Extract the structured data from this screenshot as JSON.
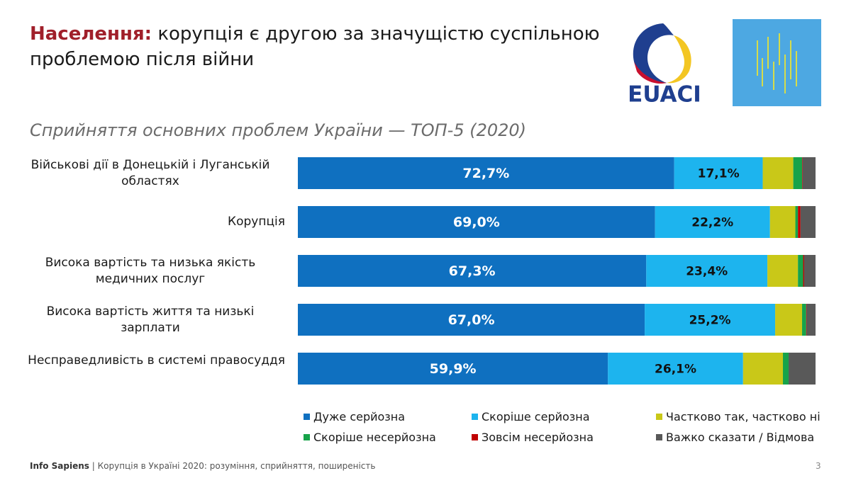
{
  "header": {
    "title_bold": "Населення:",
    "title_rest": "корупція є другою за значущістю суспільною проблемою після війни"
  },
  "logo": {
    "text": "EUACI"
  },
  "footer": {
    "source": "Info Sapiens",
    "separator": "|",
    "description": "Корупція в Україні 2020: розуміння, сприйняття, поширеність",
    "page": "3"
  },
  "chart_data": {
    "type": "bar",
    "orientation": "horizontal",
    "stacked": true,
    "title": "Сприйняття основних проблем України — ТОП-5 (2020)",
    "categories": [
      "Військові дії в Донецькій і Луганській областях",
      "Корупція",
      "Висока вартість та низька якість медичних послуг",
      "Висока вартість життя та низькі зарплати",
      "Несправедливість в системі правосуддя"
    ],
    "xlim": [
      0,
      100
    ],
    "series": [
      {
        "name": "Дуже серйозна",
        "color": "#0f70c0",
        "values": [
          72.7,
          69.0,
          67.3,
          67.0,
          59.9
        ],
        "value_labels": [
          "72,7%",
          "69,0%",
          "67,3%",
          "67,0%",
          "59,9%"
        ]
      },
      {
        "name": "Скоріше серйозна",
        "color": "#1db4ee",
        "values": [
          17.1,
          22.2,
          23.4,
          25.2,
          26.1
        ],
        "value_labels": [
          "17,1%",
          "22,2%",
          "23,4%",
          "25,2%",
          "26,1%"
        ]
      },
      {
        "name": "Частково так, частково ні",
        "color": "#c9c818",
        "values": [
          5.9,
          4.9,
          5.9,
          5.2,
          7.7
        ]
      },
      {
        "name": "Скоріше несерйозна",
        "color": "#17a34a",
        "values": [
          1.7,
          0.5,
          1.0,
          0.8,
          1.1
        ]
      },
      {
        "name": "Зовсім несерйозна",
        "color": "#c00000",
        "values": [
          0.1,
          0.5,
          0.2,
          0.1,
          0.0
        ]
      },
      {
        "name": "Важко сказати / Відмова",
        "color": "#595959",
        "values": [
          2.5,
          2.9,
          2.2,
          1.7,
          5.2
        ]
      }
    ],
    "legend": "bottom"
  }
}
